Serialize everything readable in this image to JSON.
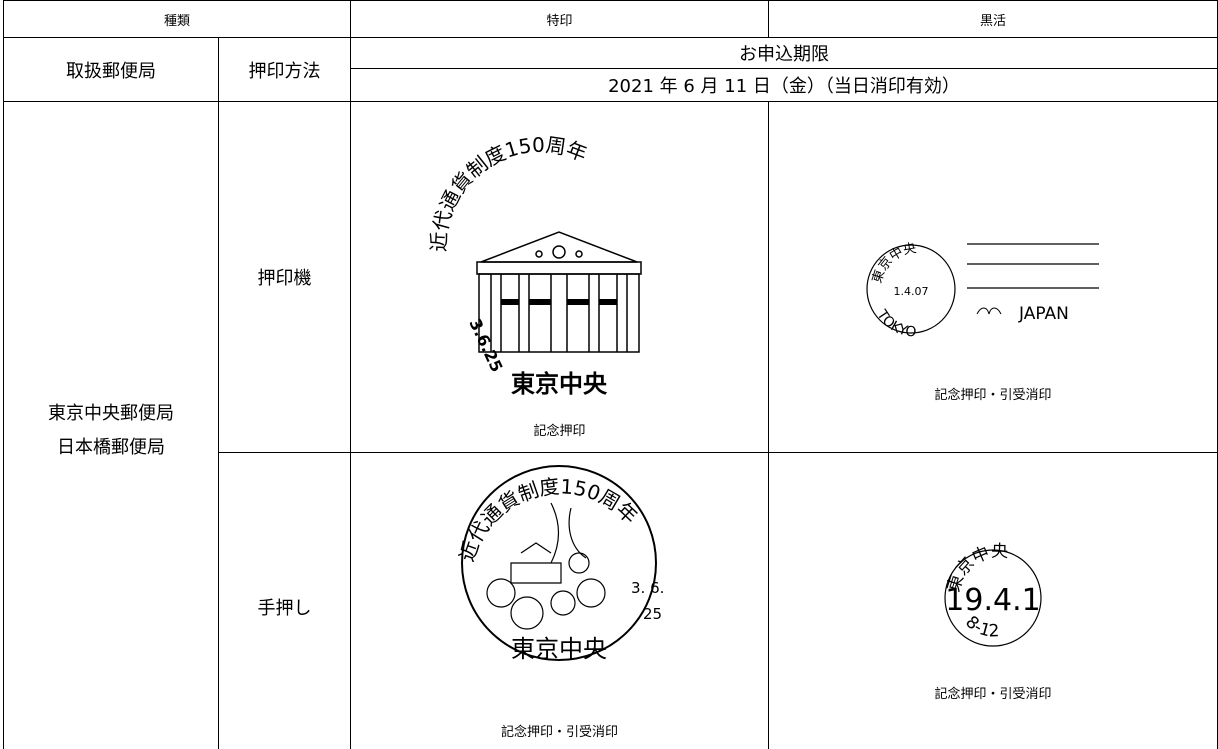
{
  "table": {
    "header": [
      "種類",
      "特印",
      "黒活"
    ],
    "subheader": {
      "office": "取扱郵便局",
      "method": "押印方法",
      "deadline_label": "お申込期限",
      "deadline": "2021 年 6 月 11 日（金）（当日消印有効）"
    },
    "offices": [
      "東京中央郵便局",
      "日本橋郵便局"
    ],
    "rows": [
      {
        "method": "押印機",
        "special": {
          "caption": "記念押印",
          "stamp": {
            "arc": "近代通貨制度150周年",
            "date": "3.6.25",
            "place": "東京中央"
          }
        },
        "black": {
          "caption": "記念押印・引受消印",
          "stamp": {
            "place": "東京中央",
            "date": "1.4.07",
            "city": "TOKYO",
            "country": "JAPAN"
          }
        }
      },
      {
        "method": "手押し",
        "special": {
          "caption": "記念押印・引受消印",
          "stamp": {
            "arc": "近代通貨制度150周年",
            "date": "3. 6.",
            "date2": "25",
            "place": "東京中央"
          }
        },
        "black": {
          "caption": "記念押印・引受消印",
          "stamp": {
            "place": "東京中央",
            "date": "19.4.1",
            "time": "8-12"
          }
        }
      }
    ]
  }
}
